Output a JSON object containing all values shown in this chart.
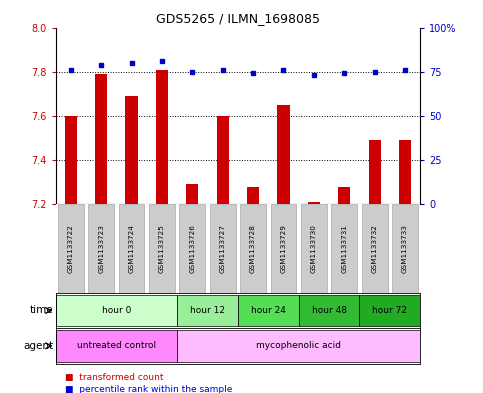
{
  "title": "GDS5265 / ILMN_1698085",
  "samples": [
    "GSM1133722",
    "GSM1133723",
    "GSM1133724",
    "GSM1133725",
    "GSM1133726",
    "GSM1133727",
    "GSM1133728",
    "GSM1133729",
    "GSM1133730",
    "GSM1133731",
    "GSM1133732",
    "GSM1133733"
  ],
  "red_values": [
    7.6,
    7.79,
    7.69,
    7.81,
    7.29,
    7.6,
    7.28,
    7.65,
    7.21,
    7.28,
    7.49,
    7.49
  ],
  "blue_values": [
    76,
    79,
    80,
    81,
    75,
    76,
    74,
    76,
    73,
    74,
    75,
    76
  ],
  "ylim_left": [
    7.2,
    8.0
  ],
  "ylim_right": [
    0,
    100
  ],
  "yticks_left": [
    7.2,
    7.4,
    7.6,
    7.8,
    8.0
  ],
  "yticks_right": [
    0,
    25,
    50,
    75,
    100
  ],
  "ytick_labels_right": [
    "0",
    "25",
    "50",
    "75",
    "100%"
  ],
  "time_groups": [
    {
      "label": "hour 0",
      "start": 0,
      "end": 4,
      "color": "#ccffcc"
    },
    {
      "label": "hour 12",
      "start": 4,
      "end": 6,
      "color": "#99ee99"
    },
    {
      "label": "hour 24",
      "start": 6,
      "end": 8,
      "color": "#55dd55"
    },
    {
      "label": "hour 48",
      "start": 8,
      "end": 10,
      "color": "#33bb33"
    },
    {
      "label": "hour 72",
      "start": 10,
      "end": 12,
      "color": "#22aa22"
    }
  ],
  "agent_groups": [
    {
      "label": "untreated control",
      "start": 0,
      "end": 4,
      "color": "#ff88ff"
    },
    {
      "label": "mycophenolic acid",
      "start": 4,
      "end": 12,
      "color": "#ffbbff"
    }
  ],
  "bar_color": "#cc0000",
  "dot_color": "#0000cc",
  "bg_color": "#ffffff",
  "sample_box_color": "#cccccc",
  "base_value": 7.2,
  "bar_width": 0.4,
  "dotted_lines": [
    7.4,
    7.6,
    7.8
  ]
}
